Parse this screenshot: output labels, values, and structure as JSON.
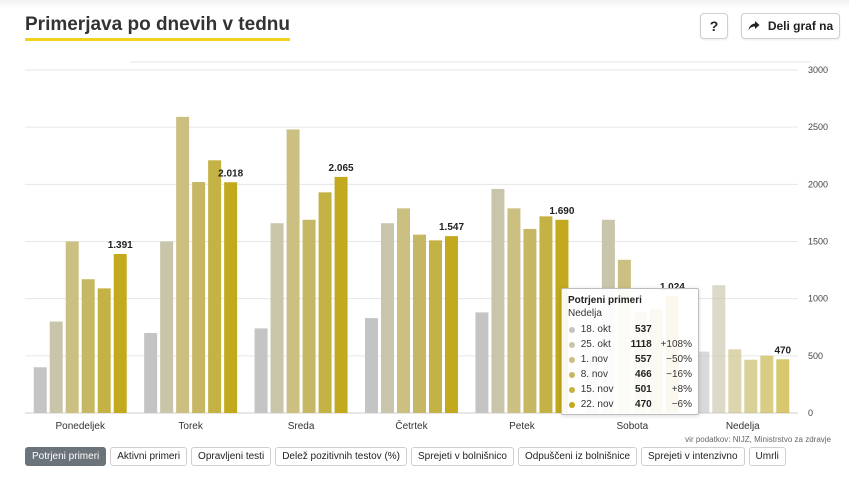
{
  "header": {
    "title": "Primerjava po dnevih v tednu",
    "help_label": "?",
    "share_label": "Deli graf na"
  },
  "source_text": "vir podatkov: NIJZ, Ministrstvo za zdravje",
  "tabs": [
    {
      "label": "Potrjeni primeri",
      "active": true
    },
    {
      "label": "Aktivni primeri",
      "active": false
    },
    {
      "label": "Opravljeni testi",
      "active": false
    },
    {
      "label": "Delež pozitivnih testov (%)",
      "active": false
    },
    {
      "label": "Sprejeti v bolnišnico",
      "active": false
    },
    {
      "label": "Odpuščeni iz bolnišnice",
      "active": false
    },
    {
      "label": "Sprejeti v intenzivno",
      "active": false
    },
    {
      "label": "Umrli",
      "active": false
    }
  ],
  "tooltip": {
    "title": "Potrjeni primeri",
    "day": "Nedelja",
    "rows": [
      {
        "label": "18. okt",
        "value": "537",
        "pct": ""
      },
      {
        "label": "25. okt",
        "value": "1118",
        "pct": "+108%"
      },
      {
        "label": "1. nov",
        "value": "557",
        "pct": "−50%"
      },
      {
        "label": "8. nov",
        "value": "466",
        "pct": "−16%"
      },
      {
        "label": "15. nov",
        "value": "501",
        "pct": "+8%"
      },
      {
        "label": "22. nov",
        "value": "470",
        "pct": "−6%"
      }
    ]
  },
  "chart_data": {
    "type": "bar",
    "categories": [
      "Ponedeljek",
      "Torek",
      "Sreda",
      "Četrtek",
      "Petek",
      "Sobota",
      "Nedelja"
    ],
    "series": [
      {
        "name": "18. okt",
        "color": "#c4c4c4",
        "values": [
          400,
          700,
          740,
          830,
          880,
          530,
          537
        ]
      },
      {
        "name": "25. okt",
        "color": "#c9c5aa",
        "values": [
          800,
          1500,
          1660,
          1660,
          1960,
          1690,
          1118
        ]
      },
      {
        "name": "1. nov",
        "color": "#cbbf82",
        "values": [
          1500,
          2590,
          2480,
          1790,
          1790,
          1340,
          557
        ]
      },
      {
        "name": "8. nov",
        "color": "#c6b764",
        "values": [
          1170,
          2020,
          1690,
          1560,
          1610,
          880,
          466
        ]
      },
      {
        "name": "15. nov",
        "color": "#c5b244",
        "values": [
          1090,
          2210,
          1930,
          1510,
          1720,
          910,
          501
        ]
      },
      {
        "name": "22. nov",
        "color": "#c2a91e",
        "values": [
          1391,
          2018,
          2065,
          1547,
          1690,
          1024,
          470
        ]
      }
    ],
    "value_labels": [
      "1.391",
      "2.018",
      "2.065",
      "1.547",
      "1.690",
      "1.024",
      "470"
    ],
    "yticks": [
      "0",
      "500",
      "1000",
      "1500",
      "2000",
      "2500",
      "3000"
    ],
    "ylim": [
      0,
      3000
    ],
    "grid": true,
    "legend": "tooltip"
  }
}
